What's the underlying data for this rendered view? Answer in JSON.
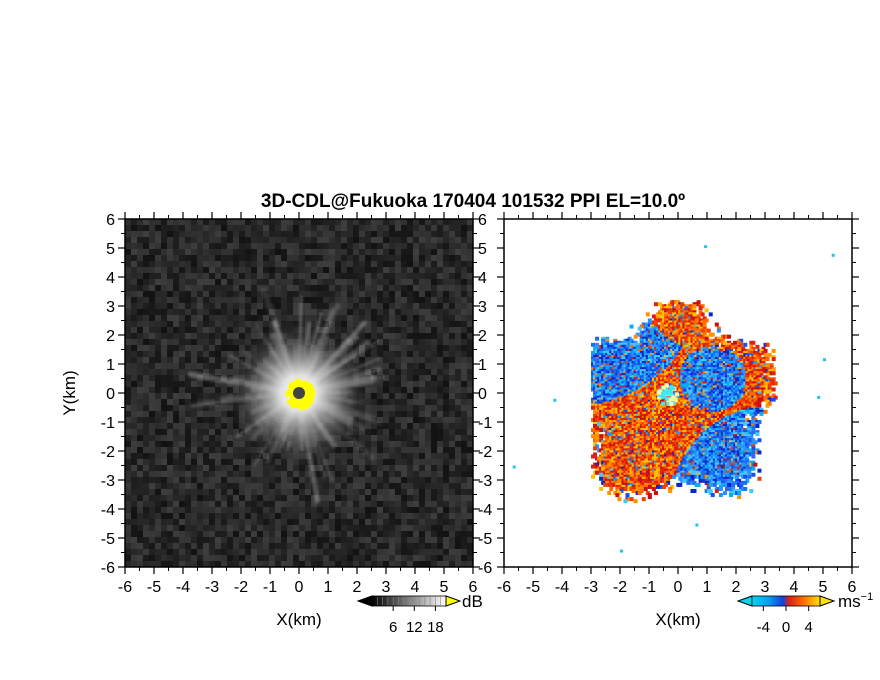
{
  "chart_data": [
    {
      "type": "heatmap",
      "title": "3D-CDL@Fukuoka 170404 101532 PPI EL=10.0º",
      "xlabel": "X(km)",
      "ylabel": "Y(km)",
      "xlim": [
        -6,
        6
      ],
      "ylim": [
        -6,
        6
      ],
      "xticks": [
        "-6",
        "-5",
        "-4",
        "-3",
        "-2",
        "-1",
        "0",
        "1",
        "2",
        "3",
        "4",
        "5",
        "6"
      ],
      "yticks": [
        "6",
        "5",
        "4",
        "3",
        "2",
        "1",
        "0",
        "-1",
        "-2",
        "-3",
        "-4",
        "-5",
        "-6"
      ],
      "field": "SNR",
      "colormap": "greyscale",
      "colorbar": {
        "unit": "dB",
        "ticks": [
          "6",
          "12",
          "18"
        ],
        "range": [
          0,
          21
        ]
      },
      "features": {
        "center_marker": [
          0,
          0
        ],
        "saturated_core": {
          "center": [
            0.05,
            -0.05
          ],
          "radius_km": 0.45,
          "color": "#ffff00"
        },
        "bright_echo_radius_km": 2.5
      }
    },
    {
      "type": "heatmap",
      "field": "Doppler velocity",
      "xlabel": "X(km)",
      "xlim": [
        -6,
        6
      ],
      "ylim": [
        -6,
        6
      ],
      "xticks": [
        "-6",
        "-5",
        "-4",
        "-3",
        "-2",
        "-1",
        "0",
        "1",
        "2",
        "3",
        "4",
        "5",
        "6"
      ],
      "yticks": [
        "6",
        "5",
        "4",
        "3",
        "2",
        "1",
        "0",
        "-1",
        "-2",
        "-3",
        "-4",
        "-5",
        "-6"
      ],
      "colormap": "cyan-blue-red-yellow",
      "colorbar": {
        "unit": "ms",
        "unit_exponent": "−1",
        "ticks": [
          "-4",
          "0",
          "4"
        ],
        "range": [
          -6,
          6
        ]
      },
      "regions": [
        {
          "name": "approaching",
          "sign": -1,
          "center": [
            -1.6,
            1.0
          ],
          "radius_km": 1.3
        },
        {
          "name": "approaching",
          "sign": -1,
          "center": [
            0.6,
            0.2
          ],
          "radius_km": 0.9
        },
        {
          "name": "approaching",
          "sign": -1,
          "center": [
            1.4,
            -2.3
          ],
          "radius_km": 1.1
        },
        {
          "name": "receding",
          "sign": 1,
          "center": [
            -0.6,
            -0.5
          ],
          "radius_km": 1.6
        },
        {
          "name": "receding",
          "sign": 1,
          "center": [
            0.0,
            2.8
          ],
          "radius_km": 0.8
        }
      ],
      "isolated_points": [
        [
          0.9,
          5.1
        ],
        [
          5.3,
          4.8
        ],
        [
          -4.3,
          -0.2
        ],
        [
          -5.7,
          -2.5
        ],
        [
          5.0,
          1.2
        ],
        [
          4.8,
          -0.1
        ],
        [
          -2.0,
          -5.4
        ],
        [
          0.6,
          -4.5
        ]
      ]
    }
  ],
  "colors": {
    "axes": "#000000",
    "background": "#ffffff",
    "snr_core": "#ffff00",
    "velocity_negative": "#1450f0",
    "velocity_positive": "#f03000"
  }
}
